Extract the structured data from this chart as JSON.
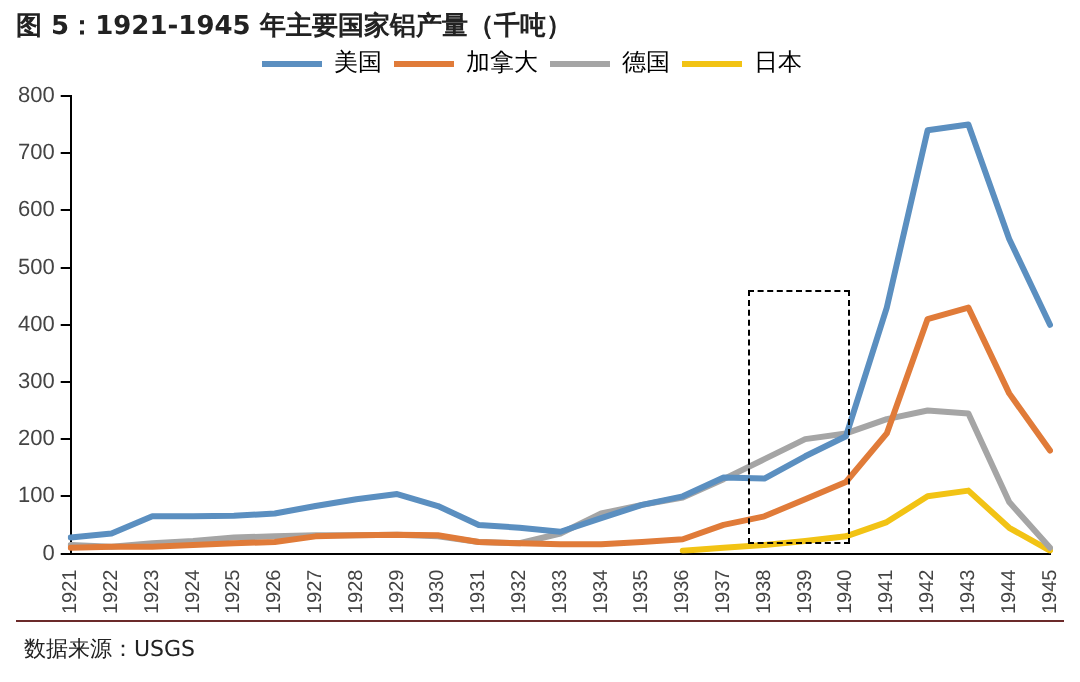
{
  "chart_data": {
    "type": "line",
    "title": "图 5：1921-1945 年主要国家铝产量（千吨）",
    "categories": [
      "1921",
      "1922",
      "1923",
      "1924",
      "1925",
      "1926",
      "1927",
      "1928",
      "1929",
      "1930",
      "1931",
      "1932",
      "1933",
      "1934",
      "1935",
      "1936",
      "1937",
      "1938",
      "1939",
      "1940",
      "1941",
      "1942",
      "1943",
      "1944",
      "1945"
    ],
    "series": [
      {
        "name": "美国",
        "color": "#5b8fc0",
        "values": [
          28,
          35,
          65,
          65,
          66,
          70,
          83,
          95,
          104,
          83,
          50,
          45,
          38,
          62,
          85,
          100,
          133,
          131,
          170,
          205,
          430,
          740,
          750,
          550,
          400
        ]
      },
      {
        "name": "加拿大",
        "color": "#e07b39",
        "values": [
          10,
          12,
          12,
          15,
          18,
          20,
          30,
          32,
          33,
          32,
          20,
          18,
          16,
          16,
          20,
          25,
          50,
          65,
          95,
          125,
          210,
          410,
          430,
          280,
          180
        ]
      },
      {
        "name": "德国",
        "color": "#a5a5a5",
        "values": [
          15,
          12,
          18,
          22,
          28,
          30,
          32,
          32,
          33,
          30,
          20,
          18,
          35,
          70,
          85,
          98,
          130,
          165,
          200,
          210,
          235,
          250,
          245,
          90,
          10
        ]
      },
      {
        "name": "日本",
        "color": "#f2c314",
        "values": [
          null,
          null,
          null,
          null,
          null,
          null,
          null,
          null,
          null,
          null,
          null,
          null,
          null,
          null,
          null,
          5,
          10,
          15,
          22,
          30,
          55,
          100,
          110,
          45,
          5
        ]
      }
    ],
    "ylim": [
      0,
      800
    ],
    "yticks": [
      0,
      100,
      200,
      300,
      400,
      500,
      600,
      700,
      800
    ],
    "grid": false,
    "legend": "top",
    "marker": "none",
    "line_style": "solid",
    "annotations": [
      "数据来源：USGS"
    ]
  }
}
